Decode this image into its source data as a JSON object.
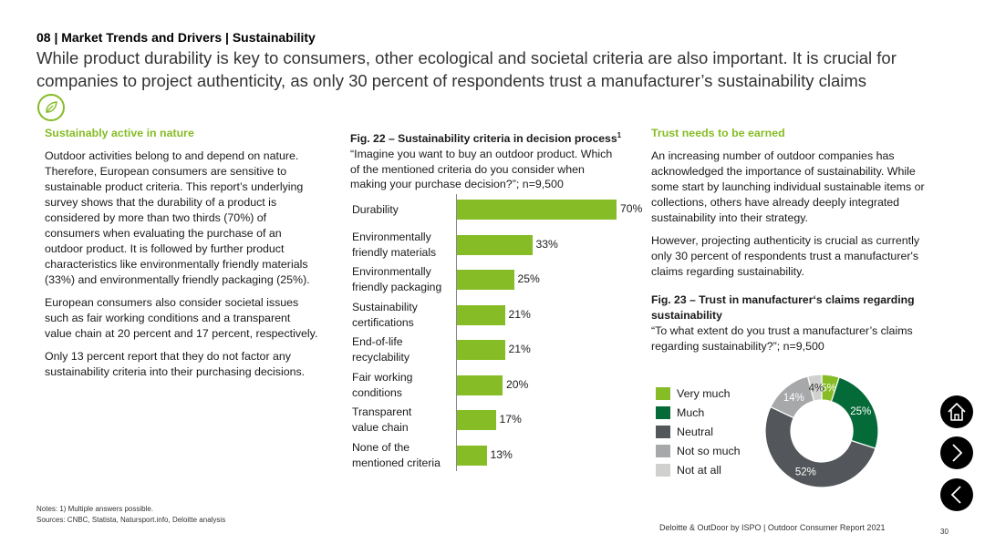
{
  "header": {
    "section": "08 | Market Trends and Drivers | Sustainability",
    "headline": "While product durability is key to consumers, other ecological and societal criteria are also important. It is crucial for companies to project authenticity, as only 30 percent of respondents trust a manufacturer’s sustainability claims"
  },
  "icons": {
    "badge": "leaf-icon",
    "home": "home-icon",
    "next": "chevron-right-icon",
    "prev": "chevron-left-icon"
  },
  "colors": {
    "accent": "#86bc25",
    "much": "#046a38",
    "neutral": "#53565a",
    "not_so_much": "#a7a8aa",
    "not_at_all": "#d0d0ce"
  },
  "left": {
    "heading": "Sustainably active in nature",
    "p1": "Outdoor activities belong to and depend on nature. Therefore, European consumers are sensitive to sustainable product criteria. This report’s underlying survey shows that the durability of a product is considered by more than two thirds (70%) of consumers when evaluating the purchase of an outdoor product. It is followed by further product characteristics like environmentally friendly materials (33%) and environmentally friendly packaging (25%).",
    "p2": "European consumers also consider societal issues such as fair working conditions and a transparent value chain at 20 percent and 17 percent, respectively.",
    "p3": "Only 13 percent report that they do not factor any sustainability criteria into their purchasing decisions."
  },
  "fig22": {
    "title": "Fig. 22 – Sustainability criteria in decision process",
    "footnote_mark": "1",
    "question": "“Imagine you want to buy an outdoor product. Which of the mentioned criteria do you consider when making your purchase decision?”; n=9,500"
  },
  "right": {
    "heading": "Trust needs to be earned",
    "p1": "An increasing number of outdoor companies has acknowledged the importance of sustainability. While some start by launching individual sustainable items or collections, others have already deeply integrated sustainability into their strategy.",
    "p2": "However, projecting authenticity is crucial as currently only 30 percent of respondents trust a manufacturer's claims regarding sustainability."
  },
  "fig23": {
    "title": "Fig. 23 – Trust in manufacturer‘s claims regarding sustainability",
    "question": "“To what extent do you trust a manufacturer’s claims regarding sustainability?”; n=9,500"
  },
  "chart_data": [
    {
      "type": "bar",
      "orientation": "horizontal",
      "title": "Fig. 22 – Sustainability criteria in decision process",
      "categories": [
        "Durability",
        "Environmentally friendly materials",
        "Environmentally friendly packaging",
        "Sustainability certifications",
        "End-of-life recyclability",
        "Fair working conditions",
        "Transparent value chain",
        "None of the mentioned criteria"
      ],
      "category_lines": [
        [
          "Durability"
        ],
        [
          "Environmentally",
          "friendly materials"
        ],
        [
          "Environmentally",
          "friendly packaging"
        ],
        [
          "Sustainability",
          "certifications"
        ],
        [
          "End-of-life",
          "recyclability"
        ],
        [
          "Fair working",
          "conditions"
        ],
        [
          "Transparent",
          "value chain"
        ],
        [
          "None of the",
          "mentioned criteria"
        ]
      ],
      "values": [
        70,
        33,
        25,
        21,
        21,
        20,
        17,
        13
      ],
      "value_suffix": "%",
      "xlim": [
        0,
        70
      ]
    },
    {
      "type": "pie",
      "style": "donut",
      "title": "Fig. 23 – Trust in manufacturer‘s claims regarding sustainability",
      "labels": [
        "Very much",
        "Much",
        "Neutral",
        "Not so much",
        "Not at all"
      ],
      "values": [
        5,
        25,
        52,
        14,
        4
      ],
      "value_suffix": "%",
      "colors": [
        "#86bc25",
        "#046a38",
        "#53565a",
        "#a7a8aa",
        "#d0d0ce"
      ],
      "label_colors": [
        "#ffffff",
        "#ffffff",
        "#ffffff",
        "#ffffff",
        "#333333"
      ]
    }
  ],
  "notes": {
    "line1": "Notes: 1) Multiple answers possible.",
    "line2": "Sources: CNBC, Statista, Natursport.info, Deloitte analysis"
  },
  "footer": {
    "text": "Deloitte & OutDoor by ISPO | Outdoor Consumer Report 2021",
    "page": "30"
  }
}
